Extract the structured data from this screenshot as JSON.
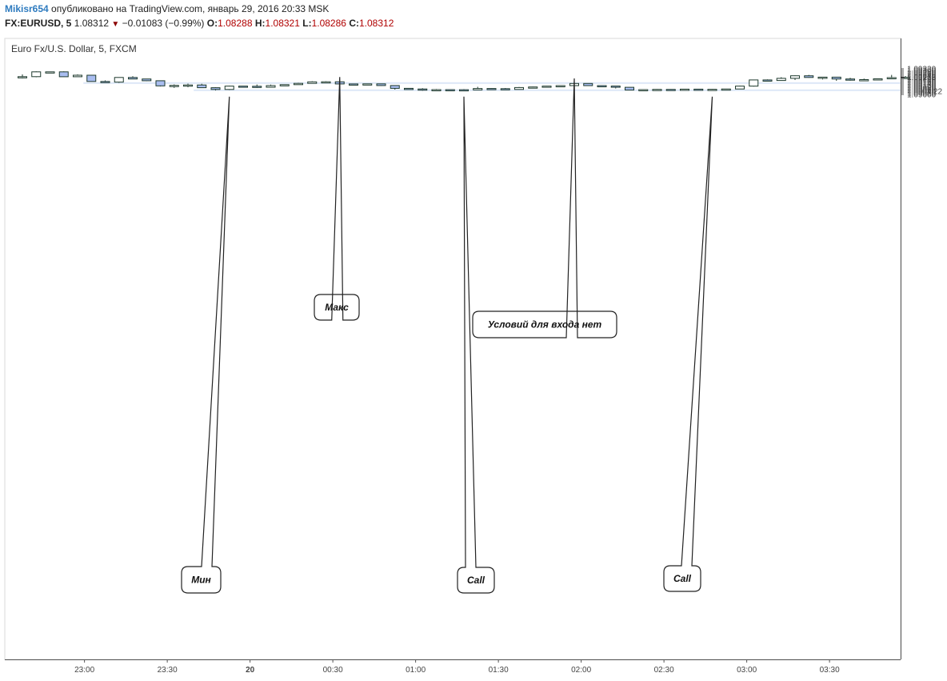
{
  "header": {
    "username": "Mikisr654",
    "published": "опубликовано на TradingView.com, январь 29, 2016 20:33 MSK",
    "symbol": "FX:EURUSD, 5",
    "last": "1.08312",
    "change": "−0.01083 (−0.99%)",
    "open_label": "O:",
    "open": "1.08288",
    "high_label": "H:",
    "high": "1.08321",
    "low_label": "L:",
    "low": "1.08286",
    "close_label": "C:",
    "close": "1.08312"
  },
  "colors": {
    "bull_fill": "#ffffff",
    "bear_fill": "#a9bdf0",
    "outline": "#1e3a2e",
    "zone": "#dce7f7"
  },
  "chart_data": {
    "type": "candlestick",
    "title": "Euro Fx/U.S. Dollar, 5, FXCM",
    "ylim": [
      1.0898,
      1.0934
    ],
    "y_ticks": [
      "1.09320",
      "1.09300",
      "1.09280",
      "1.09260",
      "1.09240",
      "1.09220",
      "1.09200",
      "1.09180",
      "1.09160",
      "1.09140",
      "1.09120",
      "1.09100",
      "1.09080",
      "1.09060",
      "1.09040",
      "1.09020",
      "1.09000"
    ],
    "x_ticks": [
      "23:00",
      "23:30",
      "20",
      "00:30",
      "01:00",
      "01:30",
      "02:00",
      "02:30",
      "03:00",
      "03:30"
    ],
    "x_tick_index": [
      4.5,
      10.5,
      16.5,
      22.5,
      28.5,
      34.5,
      40.5,
      46.5,
      52.5,
      58.5
    ],
    "last_price_label": "1.09213",
    "countdown_label": "01:22",
    "last_price": 1.09213,
    "zones": [
      {
        "y_top": 1.09152,
        "y_bottom": 1.09132,
        "start_index": 5
      },
      {
        "y_top": 1.09062,
        "y_bottom": 1.09043,
        "start_index": 13
      }
    ],
    "candles": [
      {
        "o": 1.09222,
        "h": 1.0925,
        "l": 1.092,
        "c": 1.09222
      },
      {
        "o": 1.09222,
        "h": 1.09288,
        "l": 1.09215,
        "c": 1.09282
      },
      {
        "o": 1.09282,
        "h": 1.09282,
        "l": 1.09282,
        "c": 1.09282
      },
      {
        "o": 1.09282,
        "h": 1.09288,
        "l": 1.0922,
        "c": 1.09221
      },
      {
        "o": 1.09221,
        "h": 1.0925,
        "l": 1.0922,
        "c": 1.0924
      },
      {
        "o": 1.0924,
        "h": 1.09242,
        "l": 1.0916,
        "c": 1.09162
      },
      {
        "o": 1.09162,
        "h": 1.09175,
        "l": 1.09146,
        "c": 1.09154
      },
      {
        "o": 1.09154,
        "h": 1.09215,
        "l": 1.09145,
        "c": 1.09212
      },
      {
        "o": 1.09212,
        "h": 1.09228,
        "l": 1.0919,
        "c": 1.09193
      },
      {
        "o": 1.09193,
        "h": 1.09195,
        "l": 1.09167,
        "c": 1.09171
      },
      {
        "o": 1.09171,
        "h": 1.09175,
        "l": 1.091,
        "c": 1.09107
      },
      {
        "o": 1.09107,
        "h": 1.09125,
        "l": 1.09082,
        "c": 1.09113
      },
      {
        "o": 1.09113,
        "h": 1.09135,
        "l": 1.0909,
        "c": 1.09118
      },
      {
        "o": 1.09118,
        "h": 1.09133,
        "l": 1.09083,
        "c": 1.09084
      },
      {
        "o": 1.09084,
        "h": 1.0909,
        "l": 1.0905,
        "c": 1.09062
      },
      {
        "o": 1.09062,
        "h": 1.0911,
        "l": 1.09055,
        "c": 1.09104
      },
      {
        "o": 1.09104,
        "h": 1.09105,
        "l": 1.09102,
        "c": 1.09102
      },
      {
        "o": 1.09102,
        "h": 1.09124,
        "l": 1.09082,
        "c": 1.0909
      },
      {
        "o": 1.0909,
        "h": 1.09122,
        "l": 1.09088,
        "c": 1.0911
      },
      {
        "o": 1.0911,
        "h": 1.09125,
        "l": 1.09108,
        "c": 1.09122
      },
      {
        "o": 1.09122,
        "h": 1.09145,
        "l": 1.0912,
        "c": 1.09138
      },
      {
        "o": 1.09138,
        "h": 1.09165,
        "l": 1.09136,
        "c": 1.09157
      },
      {
        "o": 1.09157,
        "h": 1.09165,
        "l": 1.09148,
        "c": 1.09158
      },
      {
        "o": 1.09158,
        "h": 1.0916,
        "l": 1.09128,
        "c": 1.09131
      },
      {
        "o": 1.09131,
        "h": 1.09133,
        "l": 1.09118,
        "c": 1.09121
      },
      {
        "o": 1.09121,
        "h": 1.09135,
        "l": 1.0912,
        "c": 1.09132
      },
      {
        "o": 1.09132,
        "h": 1.09133,
        "l": 1.09108,
        "c": 1.09111
      },
      {
        "o": 1.09111,
        "h": 1.09112,
        "l": 1.0906,
        "c": 1.09076
      },
      {
        "o": 1.09076,
        "h": 1.09077,
        "l": 1.0906,
        "c": 1.09068
      },
      {
        "o": 1.09068,
        "h": 1.09078,
        "l": 1.09046,
        "c": 1.09056
      },
      {
        "o": 1.09056,
        "h": 1.09068,
        "l": 1.0905,
        "c": 1.0906
      },
      {
        "o": 1.0906,
        "h": 1.09065,
        "l": 1.09055,
        "c": 1.09059
      },
      {
        "o": 1.09059,
        "h": 1.09066,
        "l": 1.09052,
        "c": 1.09056
      },
      {
        "o": 1.09056,
        "h": 1.09095,
        "l": 1.09055,
        "c": 1.09074
      },
      {
        "o": 1.09074,
        "h": 1.09076,
        "l": 1.0907,
        "c": 1.09072
      },
      {
        "o": 1.09072,
        "h": 1.0908,
        "l": 1.0906,
        "c": 1.09062
      },
      {
        "o": 1.09062,
        "h": 1.09092,
        "l": 1.0906,
        "c": 1.09086
      },
      {
        "o": 1.09086,
        "h": 1.09097,
        "l": 1.09082,
        "c": 1.09093
      },
      {
        "o": 1.09093,
        "h": 1.09106,
        "l": 1.09088,
        "c": 1.09104
      },
      {
        "o": 1.09104,
        "h": 1.09112,
        "l": 1.091,
        "c": 1.0911
      },
      {
        "o": 1.0911,
        "h": 1.09145,
        "l": 1.09108,
        "c": 1.09137
      },
      {
        "o": 1.09137,
        "h": 1.0914,
        "l": 1.09108,
        "c": 1.0911
      },
      {
        "o": 1.0911,
        "h": 1.09112,
        "l": 1.09104,
        "c": 1.09105
      },
      {
        "o": 1.09105,
        "h": 1.09106,
        "l": 1.09075,
        "c": 1.09089
      },
      {
        "o": 1.09089,
        "h": 1.0909,
        "l": 1.09054,
        "c": 1.09055
      },
      {
        "o": 1.09055,
        "h": 1.09063,
        "l": 1.09051,
        "c": 1.0906
      },
      {
        "o": 1.0906,
        "h": 1.09066,
        "l": 1.0906,
        "c": 1.09063
      },
      {
        "o": 1.09063,
        "h": 1.09066,
        "l": 1.09059,
        "c": 1.09061
      },
      {
        "o": 1.09061,
        "h": 1.0907,
        "l": 1.09058,
        "c": 1.09066
      },
      {
        "o": 1.09066,
        "h": 1.09068,
        "l": 1.09056,
        "c": 1.09057
      },
      {
        "o": 1.09057,
        "h": 1.09067,
        "l": 1.09053,
        "c": 1.09064
      },
      {
        "o": 1.09064,
        "h": 1.0907,
        "l": 1.09062,
        "c": 1.09068
      },
      {
        "o": 1.09068,
        "h": 1.0911,
        "l": 1.09067,
        "c": 1.09104
      },
      {
        "o": 1.09104,
        "h": 1.09182,
        "l": 1.09098,
        "c": 1.09181
      },
      {
        "o": 1.09181,
        "h": 1.09187,
        "l": 1.0917,
        "c": 1.09174
      },
      {
        "o": 1.09174,
        "h": 1.09215,
        "l": 1.09172,
        "c": 1.09201
      },
      {
        "o": 1.09201,
        "h": 1.09237,
        "l": 1.0918,
        "c": 1.09233
      },
      {
        "o": 1.09233,
        "h": 1.09244,
        "l": 1.09208,
        "c": 1.09212
      },
      {
        "o": 1.09212,
        "h": 1.0922,
        "l": 1.09188,
        "c": 1.09216
      },
      {
        "o": 1.09216,
        "h": 1.09216,
        "l": 1.0917,
        "c": 1.09193
      },
      {
        "o": 1.09193,
        "h": 1.09208,
        "l": 1.09172,
        "c": 1.0918
      },
      {
        "o": 1.0918,
        "h": 1.09198,
        "l": 1.09172,
        "c": 1.09185
      },
      {
        "o": 1.09185,
        "h": 1.09197,
        "l": 1.09185,
        "c": 1.09195
      },
      {
        "o": 1.09195,
        "h": 1.09244,
        "l": 1.09194,
        "c": 1.0921
      },
      {
        "o": 1.0921,
        "h": 1.0923,
        "l": 1.09202,
        "c": 1.09213
      }
    ],
    "annotations": [
      {
        "text": "Макс",
        "candle_index": 23,
        "price": 1.09157,
        "side": "above"
      },
      {
        "text": "Условий для входа нет",
        "candle_index": 40,
        "price": 1.0914,
        "side": "above"
      },
      {
        "text": "Мин",
        "candle_index": 15,
        "price": 1.09052,
        "side": "below"
      },
      {
        "text": "Call",
        "candle_index": 32,
        "price": 1.09052,
        "side": "below"
      },
      {
        "text": "Call",
        "candle_index": 50,
        "price": 1.09052,
        "side": "below"
      }
    ]
  }
}
